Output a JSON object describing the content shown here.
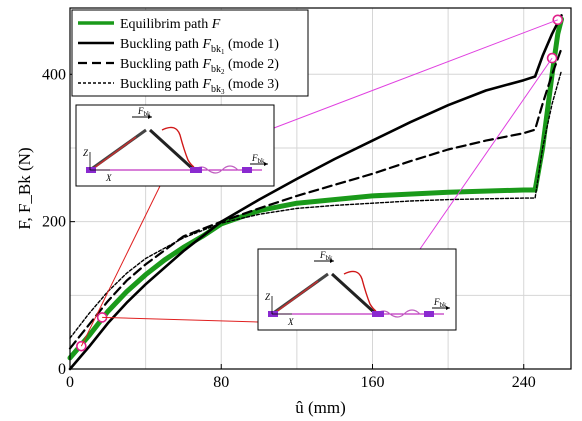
{
  "chart_data": {
    "type": "line",
    "xlabel": "û (mm)",
    "ylabel": "F, F_Bk (N)",
    "xlim": [
      0,
      265
    ],
    "ylim": [
      0,
      490
    ],
    "xticks": [
      0,
      80,
      160,
      240
    ],
    "yticks": [
      0,
      200,
      400
    ],
    "grid": true,
    "legend_position": "top-left",
    "series": [
      {
        "name": "Equilibrim path F",
        "style": "solid-thick",
        "color": "#1a9a1a",
        "x": [
          0,
          10,
          20,
          30,
          40,
          50,
          60,
          70,
          80,
          100,
          120,
          160,
          200,
          240,
          246,
          250,
          255,
          258,
          260
        ],
        "y": [
          15,
          45,
          78,
          105,
          128,
          148,
          165,
          180,
          197,
          215,
          225,
          235,
          240,
          243,
          243,
          300,
          400,
          455,
          475
        ]
      },
      {
        "name": "Buckling path F_bk1 (mode 1)",
        "style": "solid",
        "color": "#000000",
        "x": [
          0,
          10,
          20,
          30,
          40,
          60,
          80,
          100,
          120,
          140,
          160,
          180,
          200,
          220,
          240,
          246,
          250,
          255,
          260
        ],
        "y": [
          0,
          30,
          62,
          90,
          115,
          160,
          200,
          230,
          258,
          285,
          310,
          335,
          358,
          378,
          392,
          397,
          425,
          455,
          480
        ]
      },
      {
        "name": "Buckling path F_bk2 (mode 2)",
        "style": "dashed",
        "color": "#000000",
        "x": [
          0,
          10,
          20,
          30,
          40,
          60,
          80,
          100,
          120,
          140,
          160,
          180,
          200,
          220,
          240,
          246,
          250,
          255,
          260
        ],
        "y": [
          28,
          60,
          92,
          120,
          142,
          180,
          200,
          218,
          235,
          250,
          265,
          282,
          298,
          310,
          320,
          325,
          360,
          400,
          435
        ]
      },
      {
        "name": "Buckling path F_bk3 (mode 3)",
        "style": "dotted",
        "color": "#000000",
        "x": [
          0,
          10,
          20,
          30,
          40,
          60,
          80,
          100,
          120,
          140,
          160,
          180,
          200,
          220,
          240,
          246,
          250,
          255,
          260
        ],
        "y": [
          42,
          75,
          105,
          130,
          150,
          178,
          198,
          210,
          218,
          222,
          225,
          228,
          230,
          231,
          232,
          232,
          300,
          360,
          405
        ]
      }
    ],
    "markers": [
      {
        "x": 6,
        "y": 31
      },
      {
        "x": 17,
        "y": 70
      },
      {
        "x": 255,
        "y": 422
      },
      {
        "x": 258,
        "y": 474
      }
    ],
    "legend": [
      {
        "main": "Equilibrim path ",
        "var": "F",
        "sub": "",
        "suffix": ""
      },
      {
        "main": "Buckling path ",
        "var": "F",
        "sub": "bk",
        "subsub": "1",
        "suffix": " (mode 1)"
      },
      {
        "main": "Buckling path ",
        "var": "F",
        "sub": "bk",
        "subsub": "2",
        "suffix": " (mode 2)"
      },
      {
        "main": "Buckling path ",
        "var": "F",
        "sub": "bk",
        "subsub": "3",
        "suffix": " (mode 3)"
      }
    ],
    "insets": [
      {
        "labels": {
          "top": "F",
          "top_sub": "bk",
          "right": "F",
          "right_sub": "bk",
          "z": "Z",
          "x": "X"
        }
      },
      {
        "labels": {
          "top": "F",
          "top_sub": "bk",
          "right": "F",
          "right_sub": "bk",
          "z": "Z",
          "x": "X"
        }
      }
    ]
  }
}
